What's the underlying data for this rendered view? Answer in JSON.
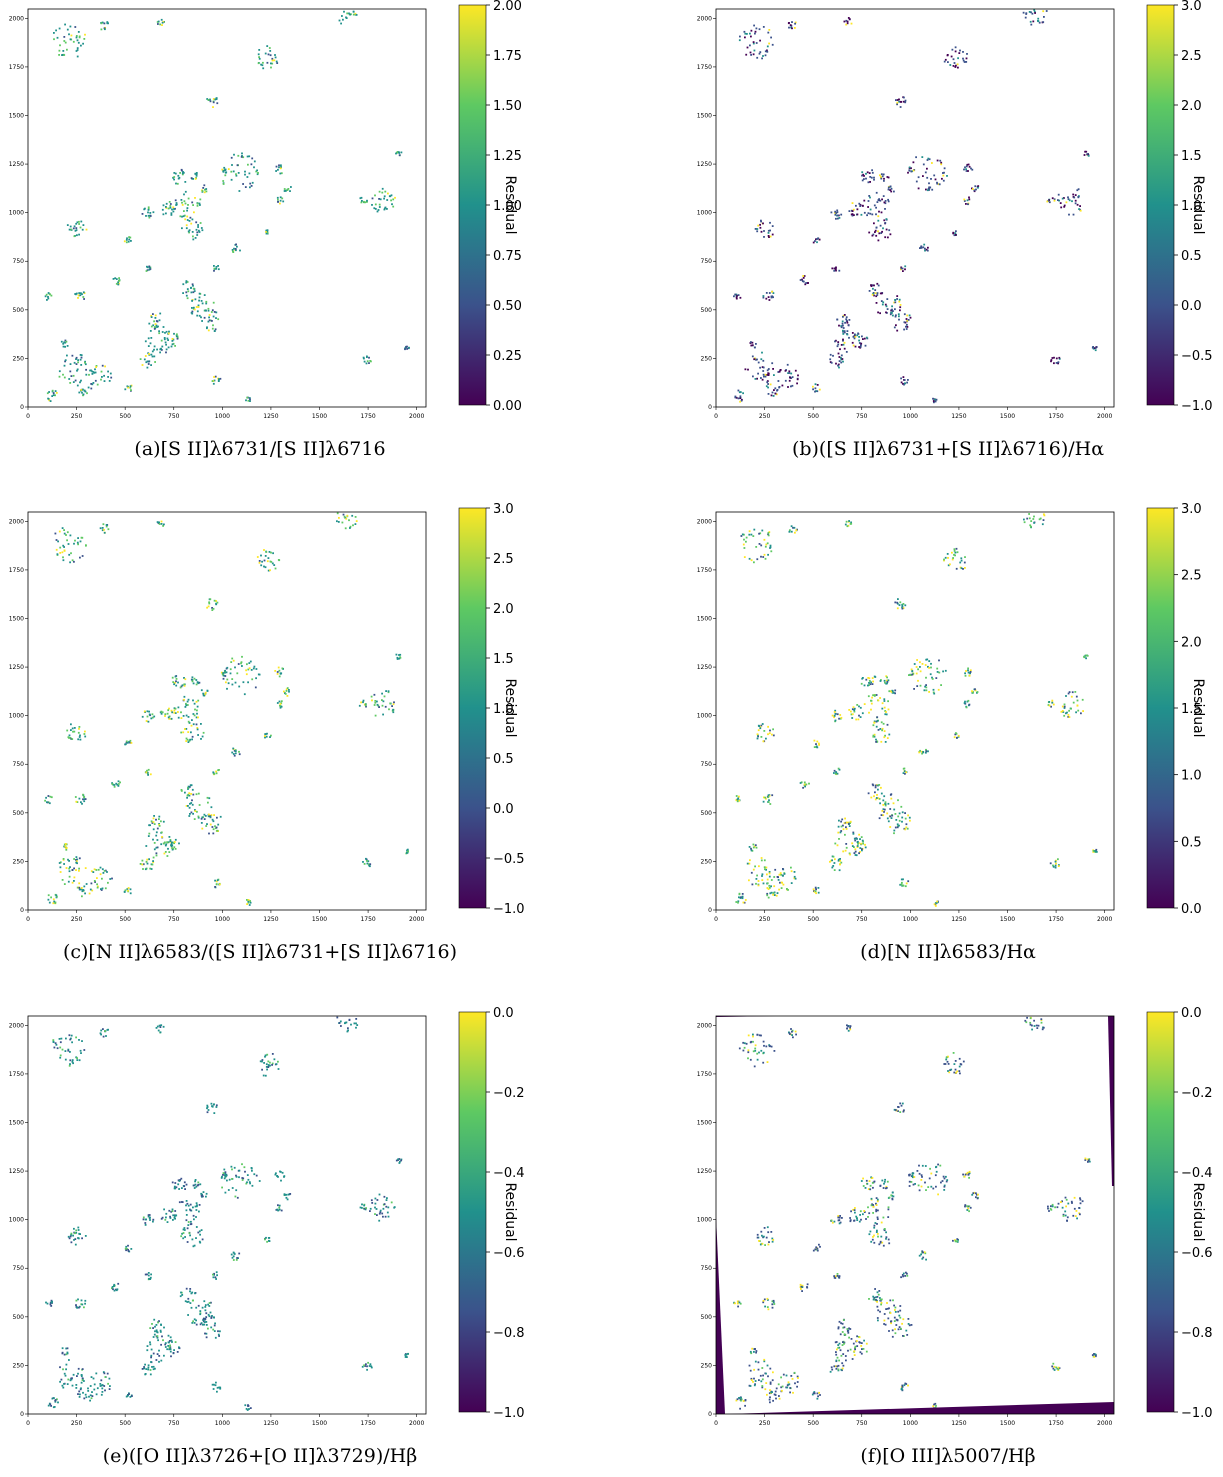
{
  "chart_data": [
    {
      "type": "heatmap",
      "panel": "a",
      "caption": "(a)[S II]λ6731/[S II]λ6716",
      "colorbar_label": "Residual",
      "clim": [
        0.0,
        2.0
      ],
      "colorbar_ticks": [
        "0.00",
        "0.25",
        "0.50",
        "0.75",
        "1.00",
        "1.25",
        "1.50",
        "1.75",
        "2.00"
      ],
      "x_ticks": [
        "0",
        "250",
        "500",
        "750",
        "1000",
        "1250",
        "1500",
        "1750",
        "2000"
      ],
      "y_ticks": [
        "0",
        "250",
        "500",
        "750",
        "1000",
        "1250",
        "1500",
        "1750",
        "2000"
      ],
      "xlim": [
        0,
        2048
      ],
      "ylim": [
        0,
        2048
      ],
      "colormap": "viridis"
    },
    {
      "type": "heatmap",
      "panel": "b",
      "caption": "(b)([S II]λ6731+[S II]λ6716)/Hα",
      "colorbar_label": "Residual",
      "clim": [
        -1.0,
        3.0
      ],
      "colorbar_ticks": [
        "−1.0",
        "−0.5",
        "0.0",
        "0.5",
        "1.0",
        "1.5",
        "2.0",
        "2.5",
        "3.0"
      ],
      "x_ticks": [
        "0",
        "250",
        "500",
        "750",
        "1000",
        "1250",
        "1500",
        "1750",
        "2000"
      ],
      "y_ticks": [
        "0",
        "250",
        "500",
        "750",
        "1000",
        "1250",
        "1500",
        "1750",
        "2000"
      ],
      "xlim": [
        0,
        2048
      ],
      "ylim": [
        0,
        2048
      ],
      "colormap": "viridis"
    },
    {
      "type": "heatmap",
      "panel": "c",
      "caption": "(c)[N II]λ6583/([S II]λ6731+[S II]λ6716)",
      "colorbar_label": "Residual",
      "clim": [
        -1.0,
        3.0
      ],
      "colorbar_ticks": [
        "−1.0",
        "−0.5",
        "0.0",
        "0.5",
        "1.0",
        "1.5",
        "2.0",
        "2.5",
        "3.0"
      ],
      "x_ticks": [
        "0",
        "250",
        "500",
        "750",
        "1000",
        "1250",
        "1500",
        "1750",
        "2000"
      ],
      "y_ticks": [
        "0",
        "250",
        "500",
        "750",
        "1000",
        "1250",
        "1500",
        "1750",
        "2000"
      ],
      "xlim": [
        0,
        2048
      ],
      "ylim": [
        0,
        2048
      ],
      "colormap": "viridis"
    },
    {
      "type": "heatmap",
      "panel": "d",
      "caption": "(d)[N II]λ6583/Hα",
      "colorbar_label": "Residual",
      "clim": [
        0.0,
        3.0
      ],
      "colorbar_ticks": [
        "0.0",
        "0.5",
        "1.0",
        "1.5",
        "2.0",
        "2.5",
        "3.0"
      ],
      "x_ticks": [
        "0",
        "250",
        "500",
        "750",
        "1000",
        "1250",
        "1500",
        "1750",
        "2000"
      ],
      "y_ticks": [
        "0",
        "250",
        "500",
        "750",
        "1000",
        "1250",
        "1500",
        "1750",
        "2000"
      ],
      "xlim": [
        0,
        2048
      ],
      "ylim": [
        0,
        2048
      ],
      "colormap": "viridis"
    },
    {
      "type": "heatmap",
      "panel": "e",
      "caption": "(e)([O II]λ3726+[O II]λ3729)/Hβ",
      "colorbar_label": "Residual",
      "clim": [
        -1.0,
        0.0
      ],
      "colorbar_ticks": [
        "−1.0",
        "−0.8",
        "−0.6",
        "−0.4",
        "−0.2",
        "0.0"
      ],
      "x_ticks": [
        "0",
        "250",
        "500",
        "750",
        "1000",
        "1250",
        "1500",
        "1750",
        "2000"
      ],
      "y_ticks": [
        "0",
        "250",
        "500",
        "750",
        "1000",
        "1250",
        "1500",
        "1750",
        "2000"
      ],
      "xlim": [
        0,
        2048
      ],
      "ylim": [
        0,
        2048
      ],
      "colormap": "viridis"
    },
    {
      "type": "heatmap",
      "panel": "f",
      "caption": "(f)[O III]λ5007/Hβ",
      "colorbar_label": "Residual",
      "clim": [
        -1.0,
        0.0
      ],
      "colorbar_ticks": [
        "−1.0",
        "−0.8",
        "−0.6",
        "−0.4",
        "−0.2",
        "0.0"
      ],
      "x_ticks": [
        "0",
        "250",
        "500",
        "750",
        "1000",
        "1250",
        "1500",
        "1750",
        "2000"
      ],
      "y_ticks": [
        "0",
        "250",
        "500",
        "750",
        "1000",
        "1250",
        "1500",
        "1750",
        "2000"
      ],
      "xlim": [
        0,
        2048
      ],
      "ylim": [
        0,
        2048
      ],
      "colormap": "viridis"
    }
  ],
  "colors": {
    "viridis_0": "#440154",
    "viridis_25": "#3b528b",
    "viridis_50": "#21918c",
    "viridis_75": "#5ec962",
    "viridis_100": "#fde725"
  }
}
